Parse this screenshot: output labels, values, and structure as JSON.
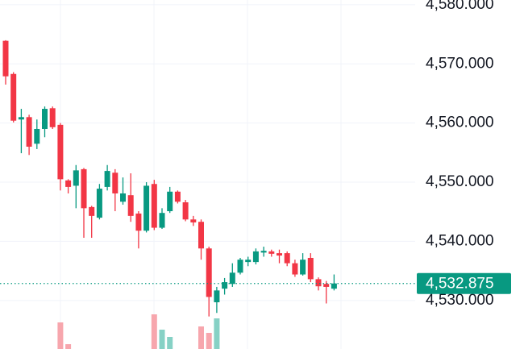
{
  "chart_data": {
    "type": "candlestick",
    "open": [
      4573.9,
      4568.3,
      4560.6,
      4561.0,
      4556.5,
      4559.0,
      4562.5,
      4559.7,
      4550.3,
      4549.4,
      4552.2,
      4545.8,
      4544.0,
      4549.2,
      4551.6,
      4546.7,
      4547.8,
      4544.7,
      4541.8,
      4549.7,
      4542.3,
      4545.1,
      4548.4,
      4546.6,
      4543.7,
      4543.3,
      4538.8,
      4529.7,
      4532.0,
      4532.8,
      4534.7,
      4536.5,
      4536.5,
      4538.1,
      4538.3,
      4538.0,
      4538.0,
      4536.3,
      4534.4,
      4537.2,
      4533.6,
      4532.8,
      4532.0
    ],
    "high": [
      4574.0,
      4568.6,
      4562.4,
      4561.4,
      4560.6,
      4562.8,
      4562.8,
      4560.0,
      4550.5,
      4552.9,
      4552.4,
      4546.0,
      4549.7,
      4552.9,
      4552.2,
      4550.8,
      4551.5,
      4545.1,
      4550.0,
      4550.4,
      4545.6,
      4549.2,
      4548.6,
      4547.0,
      4544.3,
      4543.7,
      4539.1,
      4532.3,
      4533.8,
      4536.3,
      4537.2,
      4537.4,
      4538.8,
      4539.1,
      4538.6,
      4538.6,
      4538.3,
      4536.9,
      4538.0,
      4538.0,
      4533.9,
      4533.3,
      4534.4
    ],
    "low": [
      4566.5,
      4560.1,
      4554.9,
      4554.6,
      4555.6,
      4557.6,
      4559.0,
      4548.6,
      4548.1,
      4545.6,
      4540.6,
      4540.6,
      4543.7,
      4548.6,
      4545.1,
      4546.2,
      4543.3,
      4538.8,
      4541.5,
      4541.9,
      4542.1,
      4544.8,
      4546.4,
      4543.4,
      4542.6,
      4536.9,
      4527.3,
      4527.9,
      4531.0,
      4532.3,
      4534.4,
      4535.8,
      4536.1,
      4537.4,
      4537.4,
      4536.3,
      4535.8,
      4534.0,
      4534.2,
      4533.1,
      4531.7,
      4529.5,
      4531.7
    ],
    "close": [
      4567.9,
      4560.4,
      4561.0,
      4556.0,
      4559.0,
      4562.4,
      4559.3,
      4550.5,
      4549.2,
      4552.0,
      4545.6,
      4544.3,
      4548.9,
      4551.9,
      4548.1,
      4548.1,
      4544.3,
      4541.8,
      4549.4,
      4542.3,
      4544.8,
      4548.4,
      4546.7,
      4543.7,
      4543.2,
      4538.8,
      4530.6,
      4531.7,
      4533.1,
      4534.7,
      4536.9,
      4536.9,
      4538.3,
      4538.4,
      4537.9,
      4537.6,
      4536.3,
      4534.4,
      4536.9,
      4533.6,
      4532.4,
      4532.3,
      4532.875
    ],
    "volume": [
      null,
      null,
      null,
      null,
      null,
      null,
      null,
      33,
      6,
      null,
      null,
      null,
      null,
      null,
      null,
      null,
      null,
      null,
      null,
      43,
      24,
      15,
      null,
      null,
      null,
      28,
      20,
      38,
      null,
      null,
      null,
      null,
      null,
      null,
      null,
      null,
      null,
      null,
      null,
      null,
      null,
      null,
      null
    ],
    "up_color": "#089981",
    "down_color": "#f23645",
    "volume_up_color": "#86d1c5",
    "volume_down_color": "#f7a6ad",
    "ylim": [
      4521.8,
      4580.8
    ],
    "yticks": [
      {
        "value": 4530,
        "label": "4,530.000"
      },
      {
        "value": 4540,
        "label": "4,540.000"
      },
      {
        "value": 4550,
        "label": "4,550.000"
      },
      {
        "value": 4560,
        "label": "4,560.000"
      },
      {
        "value": 4570,
        "label": "4,570.000"
      },
      {
        "value": 4580,
        "label": "4,580.000"
      }
    ],
    "last_price": {
      "value": 4532.875,
      "label": "4,532.875"
    },
    "grid": true
  }
}
